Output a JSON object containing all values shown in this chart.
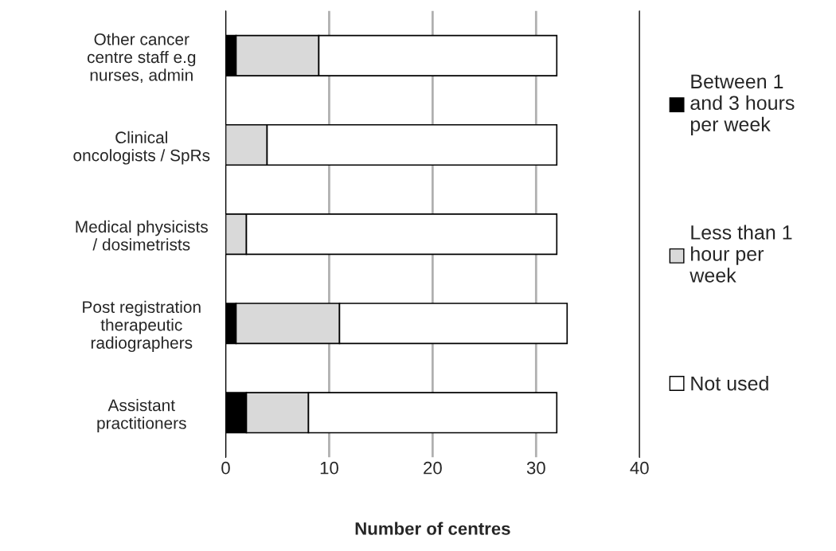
{
  "chart_data": {
    "type": "bar",
    "orientation": "horizontal",
    "stacked": true,
    "xlabel": "Number of centres",
    "categories": [
      "Other cancer centre staff e.g nurses, admin",
      "Clinical oncologists / SpRs",
      "Medical physicists / dosimetrists",
      "Post registration therapeutic radiographers",
      "Assistant practitioners"
    ],
    "series": [
      {
        "name": "Between 1 and 3 hours per week",
        "color": "#000000",
        "values": [
          1,
          0,
          0,
          1,
          2
        ]
      },
      {
        "name": "Less than 1 hour per week",
        "color": "#d9d9d9",
        "values": [
          8,
          4,
          2,
          10,
          6
        ]
      },
      {
        "name": "Not used",
        "color": "#ffffff",
        "values": [
          23,
          28,
          30,
          22,
          24
        ]
      }
    ],
    "xlim": [
      0,
      40
    ],
    "xticks": [
      0,
      10,
      20,
      30,
      40
    ],
    "grid": "x",
    "legend": "right"
  }
}
